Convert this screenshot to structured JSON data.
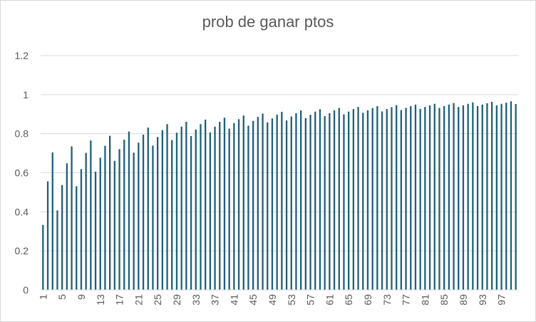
{
  "chart_data": {
    "type": "bar",
    "title": "prob de ganar ptos",
    "xlabel": "",
    "ylabel": "",
    "ylim": [
      0,
      1.2
    ],
    "yticks": [
      0,
      0.2,
      0.4,
      0.6,
      0.8,
      1,
      1.2
    ],
    "ytick_labels": [
      "0",
      "0.2",
      "0.4",
      "0.6",
      "0.8",
      "1",
      "1.2"
    ],
    "xtick_every": 4,
    "grid": true,
    "legend": "none",
    "bar_color": "#1f5f7a",
    "gridline_color": "#d9d9d9",
    "categories": [
      1,
      2,
      3,
      4,
      5,
      6,
      7,
      8,
      9,
      10,
      11,
      12,
      13,
      14,
      15,
      16,
      17,
      18,
      19,
      20,
      21,
      22,
      23,
      24,
      25,
      26,
      27,
      28,
      29,
      30,
      31,
      32,
      33,
      34,
      35,
      36,
      37,
      38,
      39,
      40,
      41,
      42,
      43,
      44,
      45,
      46,
      47,
      48,
      49,
      50,
      51,
      52,
      53,
      54,
      55,
      56,
      57,
      58,
      59,
      60,
      61,
      62,
      63,
      64,
      65,
      66,
      67,
      68,
      69,
      70,
      71,
      72,
      73,
      74,
      75,
      76,
      77,
      78,
      79,
      80,
      81,
      82,
      83,
      84,
      85,
      86,
      87,
      88,
      89,
      90,
      91,
      92,
      93,
      94,
      95,
      96,
      97,
      98,
      99,
      100
    ],
    "values": [
      0.333,
      0.556,
      0.704,
      0.407,
      0.537,
      0.648,
      0.735,
      0.531,
      0.619,
      0.702,
      0.765,
      0.606,
      0.677,
      0.738,
      0.789,
      0.661,
      0.721,
      0.769,
      0.811,
      0.703,
      0.754,
      0.795,
      0.831,
      0.739,
      0.783,
      0.818,
      0.849,
      0.767,
      0.805,
      0.836,
      0.861,
      0.788,
      0.821,
      0.849,
      0.872,
      0.806,
      0.836,
      0.861,
      0.882,
      0.826,
      0.854,
      0.874,
      0.893,
      0.841,
      0.865,
      0.886,
      0.903,
      0.858,
      0.878,
      0.897,
      0.912,
      0.868,
      0.888,
      0.905,
      0.919,
      0.88,
      0.897,
      0.913,
      0.925,
      0.89,
      0.905,
      0.92,
      0.932,
      0.899,
      0.913,
      0.926,
      0.937,
      0.907,
      0.92,
      0.931,
      0.941,
      0.914,
      0.926,
      0.936,
      0.946,
      0.921,
      0.932,
      0.941,
      0.949,
      0.927,
      0.937,
      0.945,
      0.953,
      0.932,
      0.941,
      0.949,
      0.957,
      0.937,
      0.945,
      0.953,
      0.96,
      0.941,
      0.949,
      0.956,
      0.963,
      0.945,
      0.953,
      0.959,
      0.966,
      0.952
    ]
  }
}
